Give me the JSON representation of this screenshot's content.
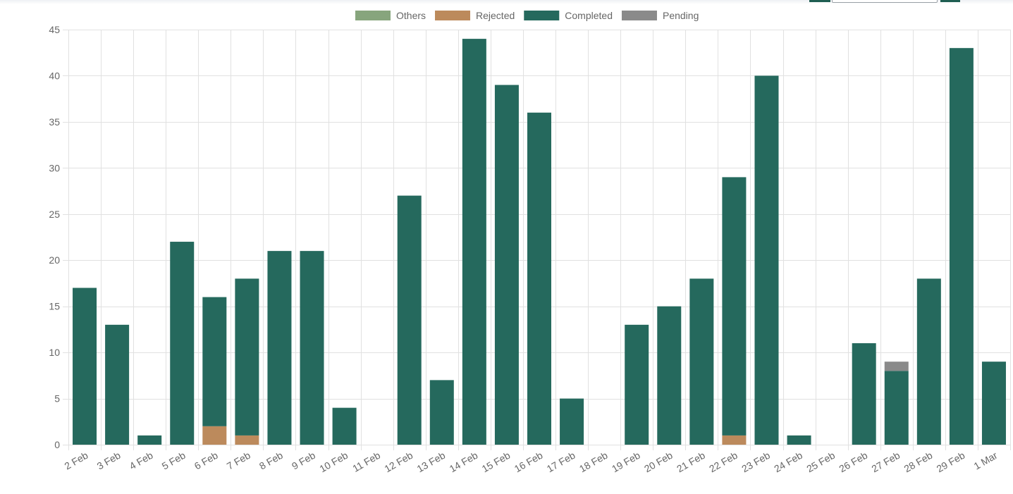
{
  "colors": {
    "others": "#87a57d",
    "rejected": "#bc8a5c",
    "completed": "#25695d",
    "pending": "#8a8a8a",
    "grid": "#e1e1e1",
    "text": "#666666"
  },
  "legend": [
    {
      "key": "others",
      "label": "Others"
    },
    {
      "key": "rejected",
      "label": "Rejected"
    },
    {
      "key": "completed",
      "label": "Completed"
    },
    {
      "key": "pending",
      "label": "Pending"
    }
  ],
  "chart_data": {
    "type": "bar",
    "stacked": true,
    "title": "",
    "xlabel": "",
    "ylabel": "",
    "ylim": [
      0,
      45
    ],
    "yticks": [
      0,
      5,
      10,
      15,
      20,
      25,
      30,
      35,
      40,
      45
    ],
    "grid": true,
    "legend_position": "top",
    "categories": [
      "2 Feb",
      "3 Feb",
      "4 Feb",
      "5 Feb",
      "6 Feb",
      "7 Feb",
      "8 Feb",
      "9 Feb",
      "10 Feb",
      "11 Feb",
      "12 Feb",
      "13 Feb",
      "14 Feb",
      "15 Feb",
      "16 Feb",
      "17 Feb",
      "18 Feb",
      "19 Feb",
      "20 Feb",
      "21 Feb",
      "22 Feb",
      "23 Feb",
      "24 Feb",
      "25 Feb",
      "26 Feb",
      "27 Feb",
      "28 Feb",
      "29 Feb",
      "1 Mar"
    ],
    "series": [
      {
        "name": "Others",
        "key": "others",
        "values": [
          0,
          0,
          0,
          0,
          0,
          0,
          0,
          0,
          0,
          0,
          0,
          0,
          0,
          0,
          0,
          0,
          0,
          0,
          0,
          0,
          0,
          0,
          0,
          0,
          0,
          0,
          0,
          0,
          0
        ]
      },
      {
        "name": "Rejected",
        "key": "rejected",
        "values": [
          0,
          0,
          0,
          0,
          2,
          1,
          0,
          0,
          0,
          0,
          0,
          0,
          0,
          0,
          0,
          0,
          0,
          0,
          0,
          0,
          1,
          0,
          0,
          0,
          0,
          0,
          0,
          0,
          0
        ]
      },
      {
        "name": "Completed",
        "key": "completed",
        "values": [
          17,
          13,
          1,
          22,
          14,
          17,
          21,
          21,
          4,
          0,
          27,
          7,
          44,
          39,
          36,
          5,
          0,
          13,
          15,
          18,
          28,
          40,
          1,
          0,
          11,
          8,
          18,
          43,
          9
        ]
      },
      {
        "name": "Pending",
        "key": "pending",
        "values": [
          0,
          0,
          0,
          0,
          0,
          0,
          0,
          0,
          0,
          0,
          0,
          0,
          0,
          0,
          0,
          0,
          0,
          0,
          0,
          0,
          0,
          0,
          0,
          0,
          0,
          1,
          0,
          0,
          0
        ]
      }
    ]
  }
}
